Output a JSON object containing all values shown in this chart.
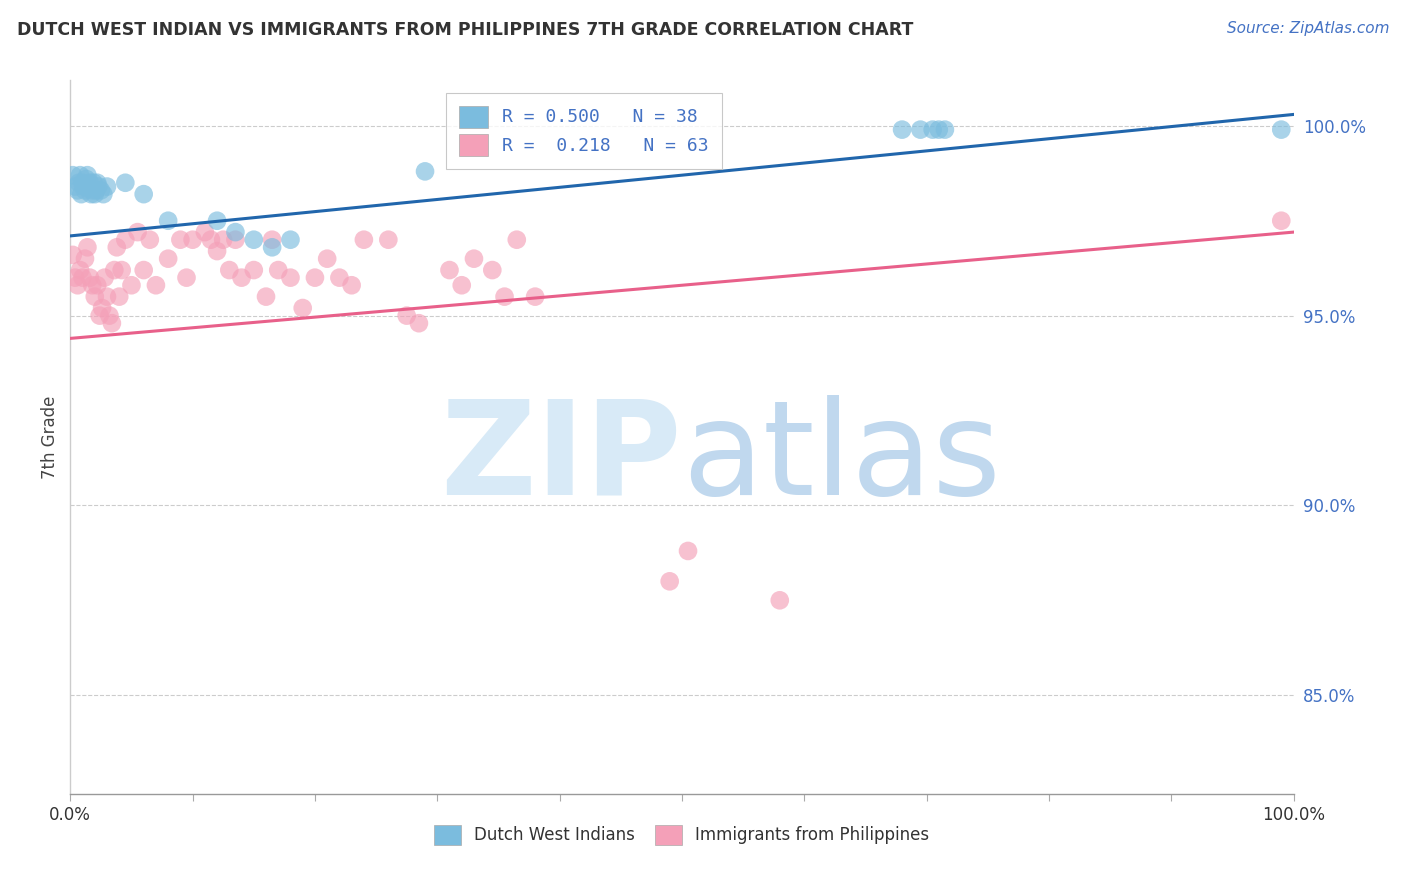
{
  "title": "DUTCH WEST INDIAN VS IMMIGRANTS FROM PHILIPPINES 7TH GRADE CORRELATION CHART",
  "source": "Source: ZipAtlas.com",
  "ylabel": "7th Grade",
  "ytick_labels": [
    "85.0%",
    "90.0%",
    "95.0%",
    "100.0%"
  ],
  "ytick_values": [
    0.85,
    0.9,
    0.95,
    1.0
  ],
  "xlim": [
    0.0,
    1.0
  ],
  "ylim": [
    0.824,
    1.012
  ],
  "blue_color": "#7bbcde",
  "pink_color": "#f4a0b8",
  "blue_line_color": "#2166ac",
  "pink_line_color": "#e8608a",
  "blue_scatter_x": [
    0.002,
    0.004,
    0.006,
    0.007,
    0.008,
    0.009,
    0.01,
    0.011,
    0.012,
    0.013,
    0.014,
    0.015,
    0.016,
    0.017,
    0.018,
    0.019,
    0.02,
    0.021,
    0.022,
    0.023,
    0.025,
    0.027,
    0.03,
    0.045,
    0.06,
    0.08,
    0.12,
    0.135,
    0.15,
    0.165,
    0.18,
    0.29,
    0.68,
    0.695,
    0.705,
    0.71,
    0.715,
    0.99
  ],
  "blue_scatter_y": [
    0.987,
    0.984,
    0.983,
    0.985,
    0.987,
    0.982,
    0.985,
    0.984,
    0.983,
    0.986,
    0.987,
    0.984,
    0.985,
    0.982,
    0.983,
    0.985,
    0.982,
    0.983,
    0.985,
    0.984,
    0.983,
    0.982,
    0.984,
    0.985,
    0.982,
    0.975,
    0.975,
    0.972,
    0.97,
    0.968,
    0.97,
    0.988,
    0.999,
    0.999,
    0.999,
    0.999,
    0.999,
    0.999
  ],
  "pink_scatter_x": [
    0.002,
    0.004,
    0.006,
    0.008,
    0.01,
    0.012,
    0.014,
    0.016,
    0.018,
    0.02,
    0.022,
    0.024,
    0.026,
    0.028,
    0.03,
    0.032,
    0.034,
    0.036,
    0.038,
    0.04,
    0.042,
    0.045,
    0.05,
    0.055,
    0.06,
    0.065,
    0.07,
    0.08,
    0.09,
    0.095,
    0.1,
    0.11,
    0.115,
    0.12,
    0.125,
    0.13,
    0.135,
    0.14,
    0.15,
    0.16,
    0.165,
    0.17,
    0.18,
    0.19,
    0.2,
    0.21,
    0.22,
    0.23,
    0.24,
    0.26,
    0.275,
    0.285,
    0.31,
    0.32,
    0.33,
    0.345,
    0.355,
    0.365,
    0.38,
    0.49,
    0.505,
    0.58,
    0.99
  ],
  "pink_scatter_y": [
    0.966,
    0.96,
    0.958,
    0.962,
    0.96,
    0.965,
    0.968,
    0.96,
    0.958,
    0.955,
    0.958,
    0.95,
    0.952,
    0.96,
    0.955,
    0.95,
    0.948,
    0.962,
    0.968,
    0.955,
    0.962,
    0.97,
    0.958,
    0.972,
    0.962,
    0.97,
    0.958,
    0.965,
    0.97,
    0.96,
    0.97,
    0.972,
    0.97,
    0.967,
    0.97,
    0.962,
    0.97,
    0.96,
    0.962,
    0.955,
    0.97,
    0.962,
    0.96,
    0.952,
    0.96,
    0.965,
    0.96,
    0.958,
    0.97,
    0.97,
    0.95,
    0.948,
    0.962,
    0.958,
    0.965,
    0.962,
    0.955,
    0.97,
    0.955,
    0.88,
    0.888,
    0.875,
    0.975
  ],
  "blue_trendline_x": [
    0.0,
    1.0
  ],
  "blue_trendline_y": [
    0.971,
    1.003
  ],
  "pink_trendline_x": [
    0.0,
    1.0
  ],
  "pink_trendline_y": [
    0.944,
    0.972
  ],
  "watermark_zip": "ZIP",
  "watermark_atlas": "atlas",
  "watermark_color_zip": "#d8eaf7",
  "watermark_color_atlas": "#c0d8ee",
  "grid_color": "#cccccc",
  "background_color": "#ffffff",
  "legend1_label_blue": "R = 0.500   N = 38",
  "legend1_label_pink": "R =  0.218   N = 63",
  "legend2_label_blue": "Dutch West Indians",
  "legend2_label_pink": "Immigrants from Philippines"
}
